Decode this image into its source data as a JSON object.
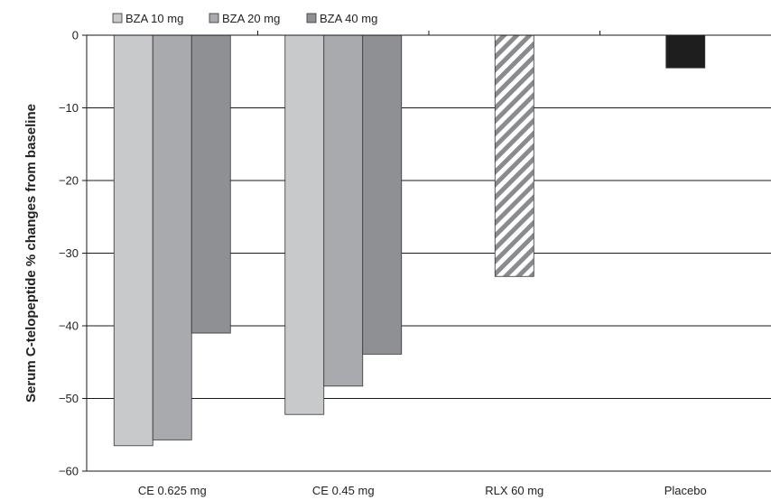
{
  "chart_data": {
    "type": "bar",
    "title": "",
    "ylabel": "Serum C-telopeptide % changes from baseline",
    "xlabel": "",
    "ylim": [
      -60,
      0
    ],
    "yticks": [
      0,
      -10,
      -20,
      -30,
      -40,
      -50,
      -60
    ],
    "grid": true,
    "legend_position": "top-left",
    "categories": [
      "CE 0.625 mg",
      "CE 0.45 mg",
      "RLX 60 mg",
      "Placebo"
    ],
    "series": [
      {
        "name": "BZA 10 mg",
        "color": "#c8c9cb",
        "values": [
          -56.5,
          -52.2,
          null,
          null
        ]
      },
      {
        "name": "BZA 20 mg",
        "color": "#a9aaad",
        "values": [
          -55.7,
          -48.3,
          null,
          null
        ]
      },
      {
        "name": "BZA 40 mg",
        "color": "#8f9094",
        "values": [
          -41.0,
          -43.9,
          null,
          null
        ]
      }
    ],
    "single_bars": [
      {
        "category": "RLX 60 mg",
        "value": -33.2,
        "fill": "hatched"
      },
      {
        "category": "Placebo",
        "value": -4.5,
        "fill": "#1e1e1e"
      }
    ]
  }
}
